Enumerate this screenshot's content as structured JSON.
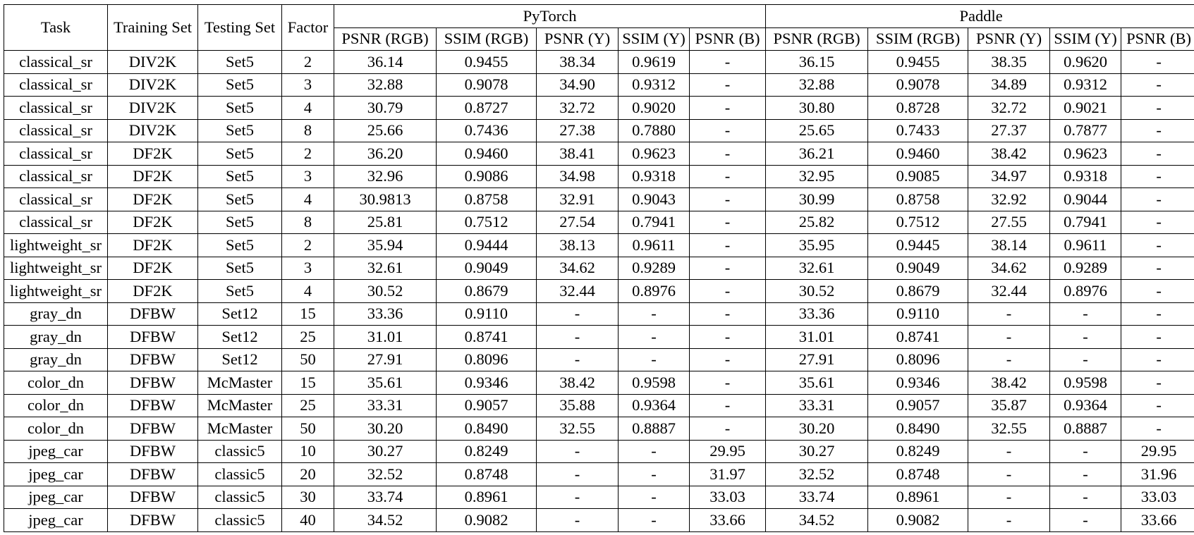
{
  "header": {
    "task": "Task",
    "training_set": "Training Set",
    "testing_set": "Testing Set",
    "factor": "Factor",
    "groups": [
      "PyTorch",
      "Paddle"
    ],
    "metrics": [
      "PSNR (RGB)",
      "SSIM (RGB)",
      "PSNR (Y)",
      "SSIM (Y)",
      "PSNR (B)"
    ]
  },
  "rows": [
    [
      "classical_sr",
      "DIV2K",
      "Set5",
      "2",
      "36.14",
      "0.9455",
      "38.34",
      "0.9619",
      "-",
      "36.15",
      "0.9455",
      "38.35",
      "0.9620",
      "-"
    ],
    [
      "classical_sr",
      "DIV2K",
      "Set5",
      "3",
      "32.88",
      "0.9078",
      "34.90",
      "0.9312",
      "-",
      "32.88",
      "0.9078",
      "34.89",
      "0.9312",
      "-"
    ],
    [
      "classical_sr",
      "DIV2K",
      "Set5",
      "4",
      "30.79",
      "0.8727",
      "32.72",
      "0.9020",
      "-",
      "30.80",
      "0.8728",
      "32.72",
      "0.9021",
      "-"
    ],
    [
      "classical_sr",
      "DIV2K",
      "Set5",
      "8",
      "25.66",
      "0.7436",
      "27.38",
      "0.7880",
      "-",
      "25.65",
      "0.7433",
      "27.37",
      "0.7877",
      "-"
    ],
    [
      "classical_sr",
      "DF2K",
      "Set5",
      "2",
      "36.20",
      "0.9460",
      "38.41",
      "0.9623",
      "-",
      "36.21",
      "0.9460",
      "38.42",
      "0.9623",
      "-"
    ],
    [
      "classical_sr",
      "DF2K",
      "Set5",
      "3",
      "32.96",
      "0.9086",
      "34.98",
      "0.9318",
      "-",
      "32.95",
      "0.9085",
      "34.97",
      "0.9318",
      "-"
    ],
    [
      "classical_sr",
      "DF2K",
      "Set5",
      "4",
      "30.9813",
      "0.8758",
      "32.91",
      "0.9043",
      "-",
      "30.99",
      "0.8758",
      "32.92",
      "0.9044",
      "-"
    ],
    [
      "classical_sr",
      "DF2K",
      "Set5",
      "8",
      "25.81",
      "0.7512",
      "27.54",
      "0.7941",
      "-",
      "25.82",
      "0.7512",
      "27.55",
      "0.7941",
      "-"
    ],
    [
      "lightweight_sr",
      "DF2K",
      "Set5",
      "2",
      "35.94",
      "0.9444",
      "38.13",
      "0.9611",
      "-",
      "35.95",
      "0.9445",
      "38.14",
      "0.9611",
      "-"
    ],
    [
      "lightweight_sr",
      "DF2K",
      "Set5",
      "3",
      "32.61",
      "0.9049",
      "34.62",
      "0.9289",
      "-",
      "32.61",
      "0.9049",
      "34.62",
      "0.9289",
      "-"
    ],
    [
      "lightweight_sr",
      "DF2K",
      "Set5",
      "4",
      "30.52",
      "0.8679",
      "32.44",
      "0.8976",
      "-",
      "30.52",
      "0.8679",
      "32.44",
      "0.8976",
      "-"
    ],
    [
      "gray_dn",
      "DFBW",
      "Set12",
      "15",
      "33.36",
      "0.9110",
      "-",
      "-",
      "-",
      "33.36",
      "0.9110",
      "-",
      "-",
      "-"
    ],
    [
      "gray_dn",
      "DFBW",
      "Set12",
      "25",
      "31.01",
      "0.8741",
      "-",
      "-",
      "-",
      "31.01",
      "0.8741",
      "-",
      "-",
      "-"
    ],
    [
      "gray_dn",
      "DFBW",
      "Set12",
      "50",
      "27.91",
      "0.8096",
      "-",
      "-",
      "-",
      "27.91",
      "0.8096",
      "-",
      "-",
      "-"
    ],
    [
      "color_dn",
      "DFBW",
      "McMaster",
      "15",
      "35.61",
      "0.9346",
      "38.42",
      "0.9598",
      "-",
      "35.61",
      "0.9346",
      "38.42",
      "0.9598",
      "-"
    ],
    [
      "color_dn",
      "DFBW",
      "McMaster",
      "25",
      "33.31",
      "0.9057",
      "35.88",
      "0.9364",
      "-",
      "33.31",
      "0.9057",
      "35.87",
      "0.9364",
      "-"
    ],
    [
      "color_dn",
      "DFBW",
      "McMaster",
      "50",
      "30.20",
      "0.8490",
      "32.55",
      "0.8887",
      "-",
      "30.20",
      "0.8490",
      "32.55",
      "0.8887",
      "-"
    ],
    [
      "jpeg_car",
      "DFBW",
      "classic5",
      "10",
      "30.27",
      "0.8249",
      "-",
      "-",
      "29.95",
      "30.27",
      "0.8249",
      "-",
      "-",
      "29.95"
    ],
    [
      "jpeg_car",
      "DFBW",
      "classic5",
      "20",
      "32.52",
      "0.8748",
      "-",
      "-",
      "31.97",
      "32.52",
      "0.8748",
      "-",
      "-",
      "31.96"
    ],
    [
      "jpeg_car",
      "DFBW",
      "classic5",
      "30",
      "33.74",
      "0.8961",
      "-",
      "-",
      "33.03",
      "33.74",
      "0.8961",
      "-",
      "-",
      "33.03"
    ],
    [
      "jpeg_car",
      "DFBW",
      "classic5",
      "40",
      "34.52",
      "0.9082",
      "-",
      "-",
      "33.66",
      "34.52",
      "0.9082",
      "-",
      "-",
      "33.66"
    ]
  ]
}
